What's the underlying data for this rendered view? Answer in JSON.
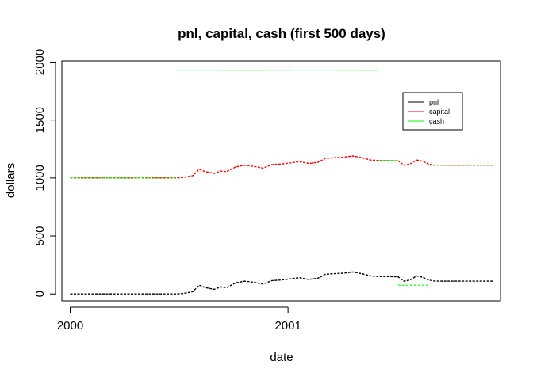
{
  "chart_data": {
    "type": "line",
    "title": "pnl, capital, cash (first 500 days)",
    "xlabel": "date",
    "ylabel": "dollars",
    "xlim": [
      "1999-12-18",
      "2001-12-24"
    ],
    "ylim": [
      -60,
      2010
    ],
    "x_ticks": [
      {
        "label": "2000",
        "date": "2000-01-01"
      },
      {
        "label": "2001",
        "date": "2001-01-01"
      }
    ],
    "y_ticks": [
      0,
      500,
      1000,
      1500,
      2000
    ],
    "legend": {
      "position": "top-right",
      "entries": [
        {
          "name": "pnl",
          "color": "#000000"
        },
        {
          "name": "capital",
          "color": "#ff0000"
        },
        {
          "name": "cash",
          "color": "#00ff00"
        }
      ]
    },
    "series": [
      {
        "name": "pnl",
        "color": "#000000",
        "x": [
          "2000-01-01",
          "2000-06-28",
          "2000-07-10",
          "2000-07-25",
          "2000-08-05",
          "2000-08-15",
          "2000-08-30",
          "2000-09-10",
          "2000-09-20",
          "2000-10-05",
          "2000-10-20",
          "2000-11-05",
          "2000-11-20",
          "2000-12-05",
          "2000-12-20",
          "2001-01-05",
          "2001-01-20",
          "2001-02-05",
          "2001-02-20",
          "2001-03-05",
          "2001-03-20",
          "2001-04-05",
          "2001-04-20",
          "2001-05-05",
          "2001-05-20",
          "2001-06-05",
          "2001-06-20",
          "2001-07-05",
          "2001-07-15",
          "2001-07-25",
          "2001-08-05",
          "2001-08-15",
          "2001-08-25",
          "2001-09-05",
          "2001-09-15",
          "2001-09-25",
          "2001-12-12"
        ],
        "y": [
          0,
          0,
          5,
          20,
          75,
          55,
          40,
          60,
          55,
          95,
          110,
          100,
          85,
          115,
          120,
          130,
          140,
          125,
          135,
          170,
          175,
          180,
          190,
          175,
          155,
          150,
          150,
          148,
          110,
          120,
          155,
          145,
          120,
          110,
          110,
          110,
          110
        ]
      },
      {
        "name": "capital",
        "color": "#ff0000",
        "x": [
          "2000-01-01",
          "2000-06-28",
          "2000-07-10",
          "2000-07-25",
          "2000-08-05",
          "2000-08-15",
          "2000-08-30",
          "2000-09-10",
          "2000-09-20",
          "2000-10-05",
          "2000-10-20",
          "2000-11-05",
          "2000-11-20",
          "2000-12-05",
          "2000-12-20",
          "2001-01-05",
          "2001-01-20",
          "2001-02-05",
          "2001-02-20",
          "2001-03-05",
          "2001-03-20",
          "2001-04-05",
          "2001-04-20",
          "2001-05-05",
          "2001-05-20",
          "2001-06-05",
          "2001-06-20",
          "2001-07-05",
          "2001-07-15",
          "2001-07-25",
          "2001-08-05",
          "2001-08-15",
          "2001-08-25",
          "2001-09-05",
          "2001-09-15",
          "2001-09-25",
          "2001-12-12"
        ],
        "y": [
          1000,
          1000,
          1005,
          1020,
          1075,
          1055,
          1040,
          1060,
          1055,
          1095,
          1110,
          1100,
          1085,
          1115,
          1120,
          1130,
          1140,
          1125,
          1135,
          1170,
          1175,
          1180,
          1190,
          1175,
          1155,
          1150,
          1150,
          1148,
          1110,
          1120,
          1155,
          1145,
          1120,
          1110,
          1110,
          1110,
          1110
        ]
      },
      {
        "name": "cash",
        "color": "#00ff00",
        "segments": [
          {
            "x": [
              "2000-01-01",
              "2000-06-28"
            ],
            "y": [
              1000,
              1000
            ]
          },
          {
            "x": [
              "2000-06-28",
              "2001-06-01"
            ],
            "y": [
              1930,
              1930
            ]
          },
          {
            "x": [
              "2001-06-01",
              "2001-07-05"
            ],
            "y": [
              1150,
              1150
            ]
          },
          {
            "x": [
              "2001-07-05",
              "2001-08-25"
            ],
            "y": [
              75,
              75
            ]
          },
          {
            "x": [
              "2001-08-25",
              "2001-12-12"
            ],
            "y": [
              1110,
              1110
            ]
          }
        ]
      }
    ]
  }
}
